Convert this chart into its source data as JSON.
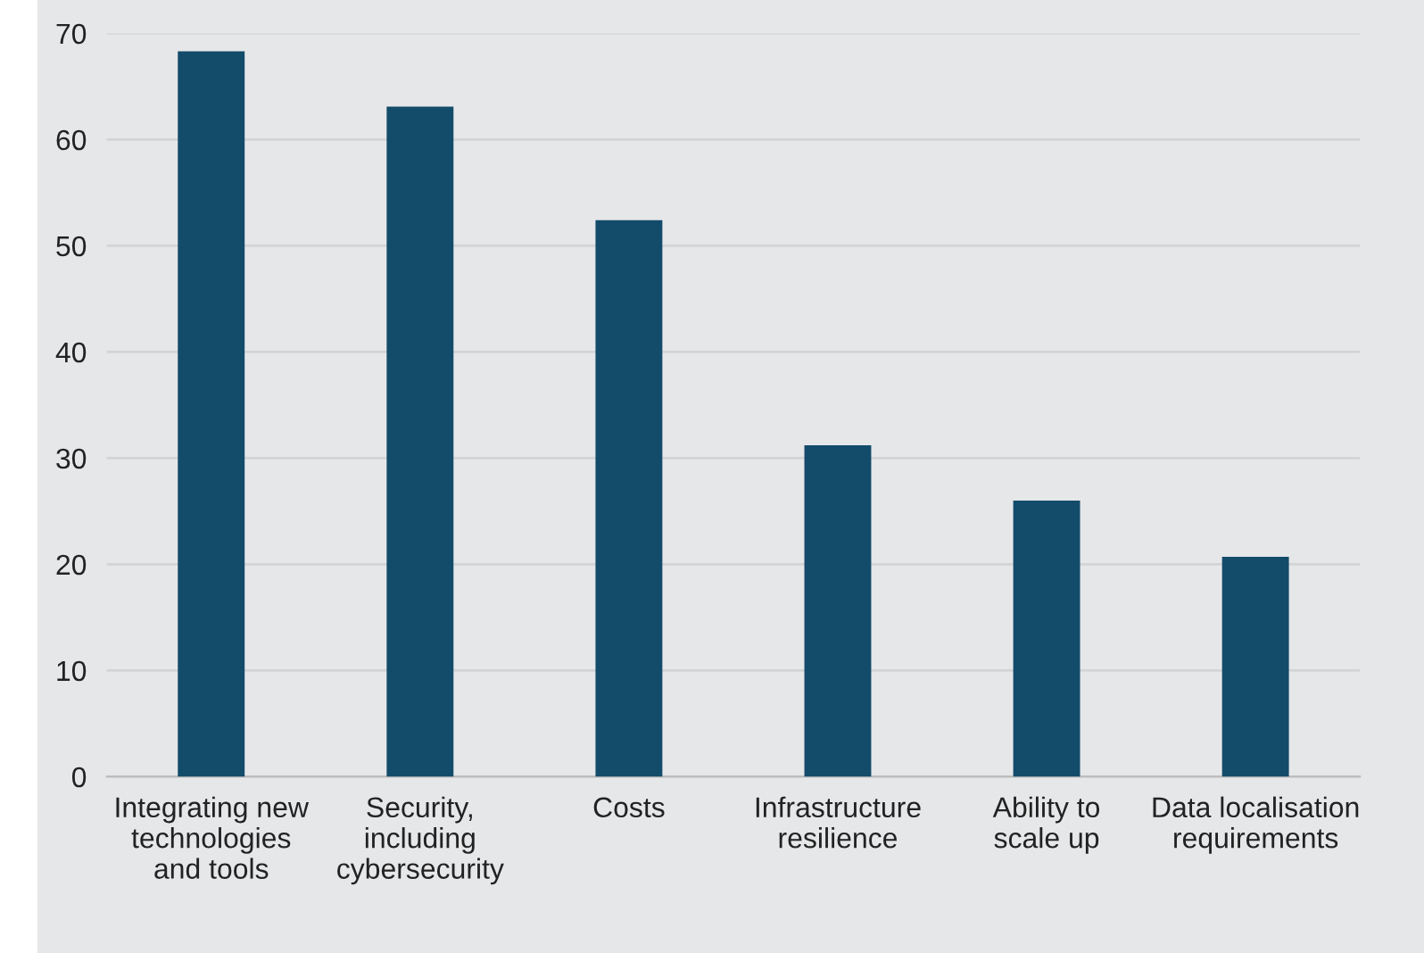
{
  "chart_data": {
    "type": "bar",
    "categories": [
      "Integrating new\ntechnologies\nand tools",
      "Security,\nincluding\ncybersecurity",
      "Costs",
      "Infrastructure\nresilience",
      "Ability to\nscale up",
      "Data localisation\nrequirements"
    ],
    "values": [
      68.3,
      63.1,
      52.4,
      31.2,
      26.0,
      20.7
    ],
    "color": "#134b6a",
    "ylim": [
      0,
      70
    ],
    "yticks": [
      0,
      10,
      20,
      30,
      40,
      50,
      60,
      70
    ],
    "grid": "y",
    "legend": false
  }
}
